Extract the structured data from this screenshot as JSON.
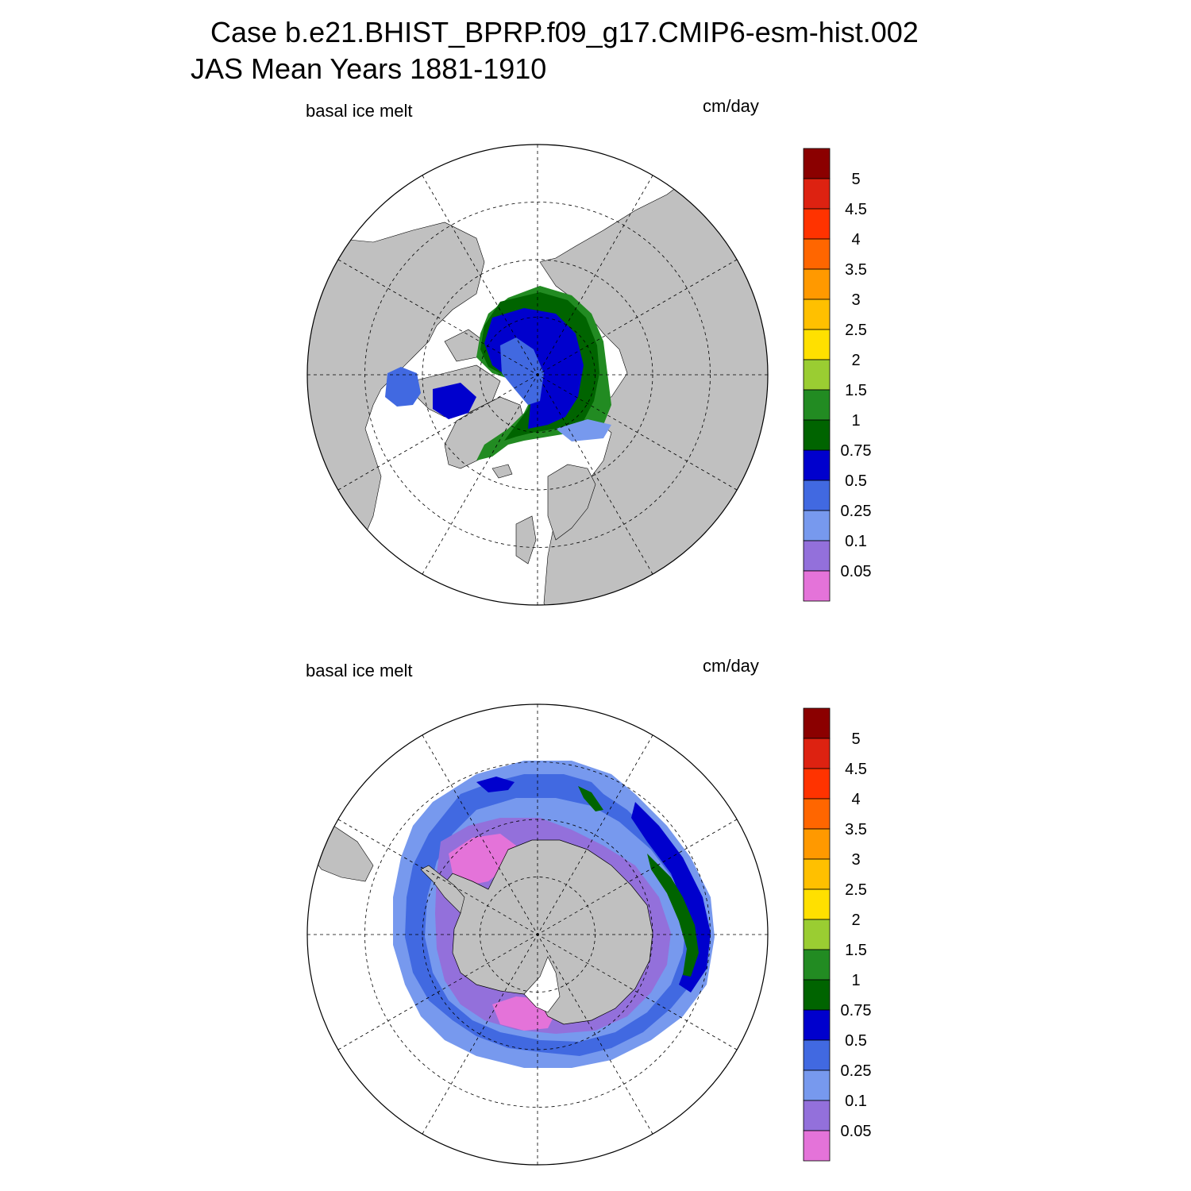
{
  "header": {
    "case_line": "Case b.e21.BHIST_BPRP.f09_g17.CMIP6-esm-hist.002",
    "period_line": "JAS Mean   Years 1881-1910"
  },
  "panels": [
    {
      "id": "north",
      "hemisphere": "Northern",
      "variable_label": "basal ice melt",
      "units_label": "cm/day"
    },
    {
      "id": "south",
      "hemisphere": "Southern",
      "variable_label": "basal ice melt",
      "units_label": "cm/day"
    }
  ],
  "colorbar": {
    "levels": [
      "0.05",
      "0.1",
      "0.25",
      "0.5",
      "0.75",
      "1",
      "1.5",
      "2",
      "2.5",
      "3",
      "3.5",
      "4",
      "4.5",
      "5"
    ],
    "colors": [
      "#e473d9",
      "#9370db",
      "#7799ee",
      "#4169e1",
      "#0000cd",
      "#006400",
      "#228b22",
      "#9acd32",
      "#ffe000",
      "#ffc000",
      "#ff9900",
      "#ff6600",
      "#ff3300",
      "#dd2211",
      "#8b0000"
    ]
  },
  "map_colors": {
    "land": "#c0c0c0",
    "ocean": "#ffffff"
  }
}
